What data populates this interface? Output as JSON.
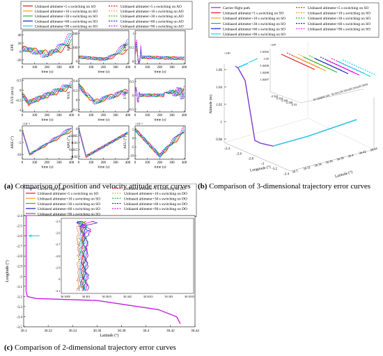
{
  "captions": {
    "a_label": "(a)",
    "a_text": "Comparison of position and velocity attitude error curves",
    "b_label": "(b)",
    "b_text": "Comparison of 3-dimensional trajectory error curves",
    "c_label": "(c)",
    "c_text": "Comparison of 2-dimensional trajectory error curves"
  },
  "colors": {
    "s5": "#e8141e",
    "s10": "#f0a020",
    "s30": "#2ab52a",
    "s60": "#1a1ad0",
    "s90": "#19d2e6",
    "s120": "#ee10ee",
    "carrier": "#7b39c9"
  },
  "chart_data": [
    {
      "id": "a",
      "type": "line",
      "legend": {
        "placement": "top",
        "entries": [
          {
            "label": "Unbiased altimeter+5 s switching on SO",
            "color": "#e8141e",
            "dash": false
          },
          {
            "label": "Unbiased altimeter+5 s switching on AO",
            "color": "#e8141e",
            "dash": true
          },
          {
            "label": "Unbiased altimeter+10 s switching on SO",
            "color": "#f0a020",
            "dash": false
          },
          {
            "label": "Unbiased altimeter+10 s switching on AO",
            "color": "#f0a020",
            "dash": true
          },
          {
            "label": "Unbiased altimeter+30 s switching on SO",
            "color": "#2ab52a",
            "dash": false
          },
          {
            "label": "Unbiased altimeter+30 s switching on AO",
            "color": "#2ab52a",
            "dash": true
          },
          {
            "label": "Unbiased altimeter+60 s switching on SO",
            "color": "#1a1ad0",
            "dash": false
          },
          {
            "label": "Unbiased altimeter+60 s switching on AO",
            "color": "#1a1ad0",
            "dash": true
          },
          {
            "label": "Unbiased altimeter+90 s switching on SO",
            "color": "#19d2e6",
            "dash": false
          },
          {
            "label": "Unbiased altimeter+90 s switching on AO",
            "color": "#ee10ee",
            "dash": true
          }
        ]
      },
      "subplots": [
        {
          "ylabel": "EPE",
          "xlabel": "time (s)",
          "xticks": [
            "0",
            "100",
            "200",
            "300",
            "400"
          ],
          "yticks": [
            "40",
            "20",
            "0",
            "-20"
          ],
          "ylim": [
            -30,
            50
          ],
          "exp": ""
        },
        {
          "ylabel": "NPE",
          "xlabel": "time (s)",
          "xticks": [
            "0",
            "100",
            "200",
            "300",
            "400"
          ],
          "yticks": [
            "200",
            "100",
            "0"
          ],
          "ylim": [
            -20,
            220
          ],
          "exp": ""
        },
        {
          "ylabel": "UPE",
          "xlabel": "time (s)",
          "xticks": [
            "0",
            "100",
            "200",
            "300",
            "400"
          ],
          "yticks": [
            "1",
            "0.5",
            "0"
          ],
          "ylim": [
            -0.1,
            1.1
          ],
          "exp": ""
        },
        {
          "ylabel": "EVE (m/s)",
          "xlabel": "time (s)",
          "xticks": [
            "0",
            "100",
            "200",
            "300",
            "400"
          ],
          "yticks": [
            "0.5",
            "0",
            "-0.5",
            "-1"
          ],
          "ylim": [
            -1.1,
            0.6
          ],
          "exp": ""
        },
        {
          "ylabel": "NVE",
          "xlabel": "time (s)",
          "xticks": [
            "0",
            "100",
            "200",
            "300",
            "400"
          ],
          "yticks": [
            "0.4",
            "0.2",
            "0",
            "-0.2"
          ],
          "ylim": [
            -0.25,
            0.45
          ],
          "exp": ""
        },
        {
          "ylabel": "UVE",
          "xlabel": "time (s)",
          "xticks": [
            "0",
            "100",
            "200",
            "300",
            "400"
          ],
          "yticks": [
            "0.5",
            "0",
            "-0.5"
          ],
          "ylim": [
            -0.6,
            0.6
          ],
          "exp": ""
        },
        {
          "ylabel": "ARE (°)",
          "xlabel": "time (s)",
          "xticks": [
            "0",
            "100",
            "200",
            "300",
            "400"
          ],
          "yticks": [
            "0",
            "-5",
            "-10"
          ],
          "ylim": [
            -12,
            2
          ],
          "exp": "×10⁻³"
        },
        {
          "ylabel": "APE (°)",
          "xlabel": "time (s)",
          "xticks": [
            "0",
            "100",
            "200",
            "300",
            "400"
          ],
          "yticks": [
            "0",
            "-0.005",
            "-0.01",
            "-0.015",
            "-0.02"
          ],
          "ylim": [
            -0.022,
            0.002
          ],
          "exp": ""
        },
        {
          "ylabel": "AEU (°)",
          "xlabel": "time (s)",
          "xticks": [
            "0",
            "100",
            "200",
            "300",
            "400"
          ],
          "yticks": [
            "5",
            "0",
            "-5",
            "-10"
          ],
          "ylim": [
            -12,
            7
          ],
          "exp": "×10⁻³"
        }
      ]
    },
    {
      "id": "b",
      "type": "line",
      "legend": {
        "placement": "top",
        "entries": [
          {
            "label": "Carrier flight path",
            "color": "#7b39c9",
            "dash": false
          },
          {
            "label": "Unbiased altimeter+5 s switching on SO",
            "color": "#e8141e",
            "dash": true
          },
          {
            "label": "Unbiased altimeter+5 s switching on SO",
            "color": "#e8141e",
            "dash": false
          },
          {
            "label": "Unbiased altimeter+10 s switching on SO",
            "color": "#f0a020",
            "dash": true
          },
          {
            "label": "Unbiased altimeter+10 s switching on SO",
            "color": "#f0a020",
            "dash": false
          },
          {
            "label": "Unbiased altimeter+30 s switching on SO",
            "color": "#2ab52a",
            "dash": true
          },
          {
            "label": "Unbiased altimeter+30 s switching on SO",
            "color": "#2ab52a",
            "dash": false
          },
          {
            "label": "Unbiased altimeter+60 s switching on SO",
            "color": "#1a1ad0",
            "dash": true
          },
          {
            "label": "Unbiased altimeter+60 s switching on SO",
            "color": "#1a1ad0",
            "dash": false
          },
          {
            "label": "Unbiased altimeter+90 s switching on SO",
            "color": "#ee10ee",
            "dash": true
          },
          {
            "label": "Unbiased altimeter+90 s switching on SO",
            "color": "#19d2e6",
            "dash": false
          }
        ]
      },
      "zlabel": "Altitude (m)",
      "xlabel": "Longitude (°)",
      "ylabel": "Latitude (°)",
      "zexp": "×10⁴",
      "zticks": [
        "1.06",
        "1.04",
        "1.02",
        "1",
        "0.98"
      ],
      "lon_ticks": [
        "-2.4",
        "-2.6",
        "-2.8",
        "-3",
        "-3.2",
        "-3.4"
      ],
      "lat_ticks": [
        "30.3",
        "30.32",
        "30.34",
        "30.36",
        "30.38",
        "30.4",
        "30.42",
        "30.44"
      ],
      "inset": {
        "exp": "×10⁴",
        "yticks": [
          "1.0502",
          "1.05",
          "1.0499",
          "1.0498",
          "1.0497"
        ],
        "xticks": [
          "-2.542",
          "-2.544",
          "-2.546",
          "-2.548",
          "-2.55"
        ],
        "lat_ticks": [
          "30.3008",
          "30.301",
          "30.3012",
          "30.3014",
          "30.3016",
          "30.3018"
        ]
      }
    },
    {
      "id": "c",
      "type": "line",
      "legend": {
        "placement": "top",
        "entries": [
          {
            "label": "Carrier flight path",
            "color": "#7b39c9",
            "dash": false
          },
          {
            "label": "Unbiased altimeter+5 s switching on DO",
            "color": "#e8141e",
            "dash": true
          },
          {
            "label": "Unbiased altimeter+5 s switching on SO",
            "color": "#e8141e",
            "dash": false
          },
          {
            "label": "Unbiased altimeter+10 s switching on DO",
            "color": "#f0a020",
            "dash": true
          },
          {
            "label": "Unbiased altimeter+10 s switching on SO",
            "color": "#f0a020",
            "dash": false
          },
          {
            "label": "Unbiased altimeter+30 s switching on DO",
            "color": "#2ab52a",
            "dash": true
          },
          {
            "label": "Unbiased altimeter+30 s switching on SO",
            "color": "#2ab52a",
            "dash": false
          },
          {
            "label": "Unbiased altimeter+60 s switching on DO",
            "color": "#1a1ad0",
            "dash": true
          },
          {
            "label": "Unbiased altimeter+60 s switching on SO",
            "color": "#1a1ad0",
            "dash": false
          },
          {
            "label": "Unbiased altimeter+90 s switching on DO",
            "color": "#ee10ee",
            "dash": true
          },
          {
            "label": "Unbiased altimeter+90 s switching on SO",
            "color": "#ee10ee",
            "dash": false
          }
        ]
      },
      "xlabel": "Latitude (°)",
      "ylabel": "Longitude (°)",
      "xticks": [
        "30.3",
        "30.32",
        "30.34",
        "30.36",
        "30.38",
        "30.4",
        "30.42",
        "30.44"
      ],
      "yticks": [
        "-2.4",
        "-2.5",
        "-2.6",
        "-2.7",
        "-2.8",
        "-2.9",
        "-3",
        "-3.1",
        "-3.2",
        "-3.3",
        "-3.4",
        "-3.5"
      ],
      "xlim": [
        30.3,
        30.44
      ],
      "ylim": [
        -3.5,
        -2.4
      ],
      "carrier_path": [
        [
          30.302,
          -2.4
        ],
        [
          30.302,
          -3.15
        ],
        [
          30.303,
          -3.2
        ],
        [
          30.31,
          -3.22
        ],
        [
          30.36,
          -3.24
        ],
        [
          30.41,
          -3.33
        ],
        [
          30.425,
          -3.4
        ],
        [
          30.428,
          -3.47
        ]
      ],
      "inset": {
        "yticks": [
          "-2.5",
          "-2.6",
          "-2.7",
          "-2.8",
          "-2.9",
          "-3",
          "-3.1"
        ],
        "xticks": [
          "30.3005",
          "30.301",
          "30.3015",
          "30.302",
          "30.3025",
          "30.303",
          "30.3035"
        ]
      }
    }
  ]
}
